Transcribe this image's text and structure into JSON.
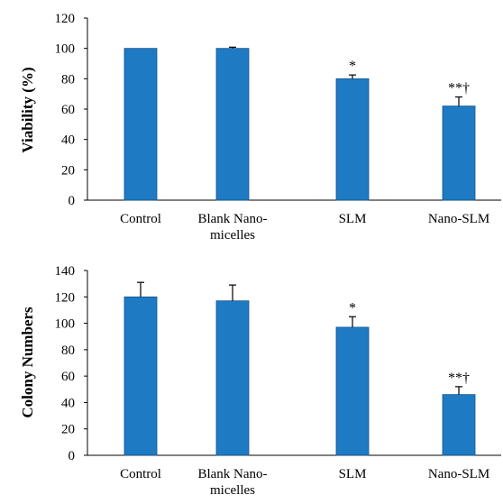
{
  "chart_data": [
    {
      "type": "bar",
      "title": "",
      "xlabel": "",
      "ylabel": "Viability (%)",
      "ylim": [
        0,
        120
      ],
      "yticks": [
        0,
        20,
        40,
        60,
        80,
        100,
        120
      ],
      "categories": [
        [
          "Control"
        ],
        [
          "Blank Nano-",
          "micelles"
        ],
        [
          "SLM"
        ],
        [
          "Nano-SLM"
        ]
      ],
      "values": [
        100,
        100,
        80,
        62
      ],
      "errors": [
        0,
        0.8,
        2.5,
        6
      ],
      "annotations": [
        "",
        "",
        "*",
        "**†"
      ],
      "color": "#1f7ac4",
      "grid": false
    },
    {
      "type": "bar",
      "title": "",
      "xlabel": "",
      "ylabel": "Colony Numbers",
      "ylim": [
        0,
        140
      ],
      "yticks": [
        0,
        20,
        40,
        60,
        80,
        100,
        120,
        140
      ],
      "categories": [
        [
          "Control"
        ],
        [
          "Blank Nano-",
          "micelles"
        ],
        [
          "SLM"
        ],
        [
          "Nano-SLM"
        ]
      ],
      "values": [
        120,
        117,
        97,
        46
      ],
      "errors": [
        11,
        12,
        8,
        6
      ],
      "annotations": [
        "",
        "",
        "*",
        "**†"
      ],
      "color": "#1f7ac4",
      "grid": false
    }
  ]
}
